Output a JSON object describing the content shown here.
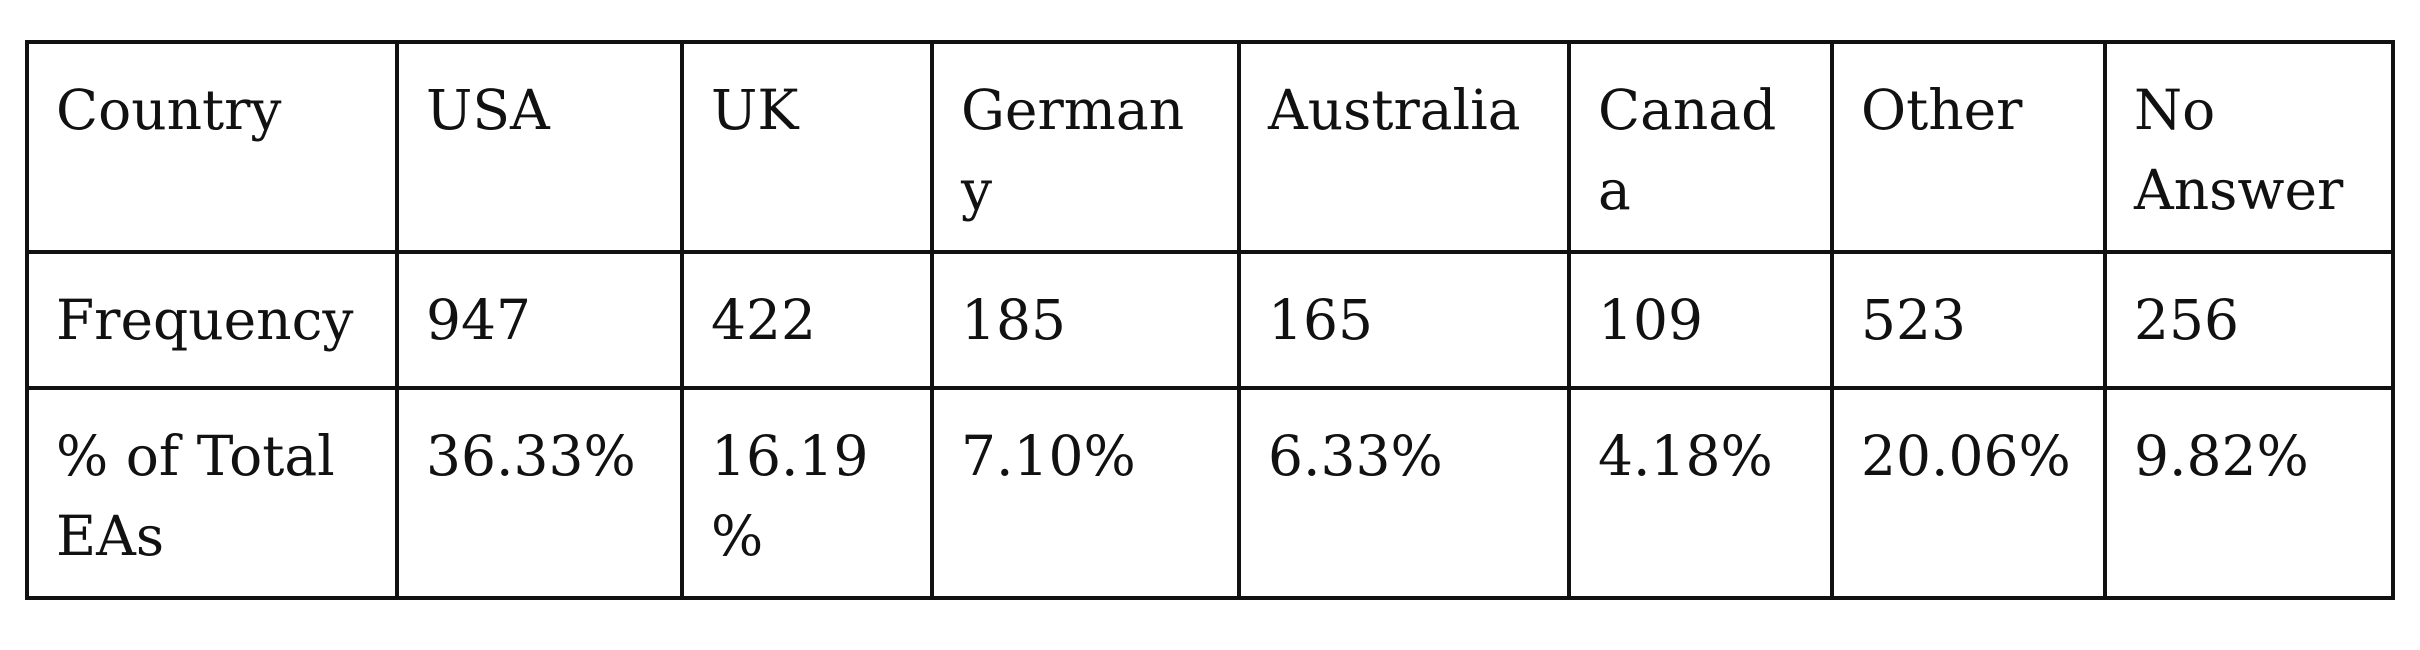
{
  "table": {
    "rows": [
      {
        "name": "country",
        "label": "Country",
        "cells": [
          "USA",
          "UK",
          "Germany",
          "Australia",
          "Canada",
          "Other",
          "No Answer"
        ]
      },
      {
        "name": "frequency",
        "label": "Frequency",
        "cells": [
          "947",
          "422",
          "185",
          "165",
          "109",
          "523",
          "256"
        ]
      },
      {
        "name": "percent",
        "label": "% of Total EAs",
        "cells": [
          "36.33%",
          "16.19%",
          "7.10%",
          "6.33%",
          "4.18%",
          "20.06%",
          "9.82%"
        ]
      }
    ]
  }
}
